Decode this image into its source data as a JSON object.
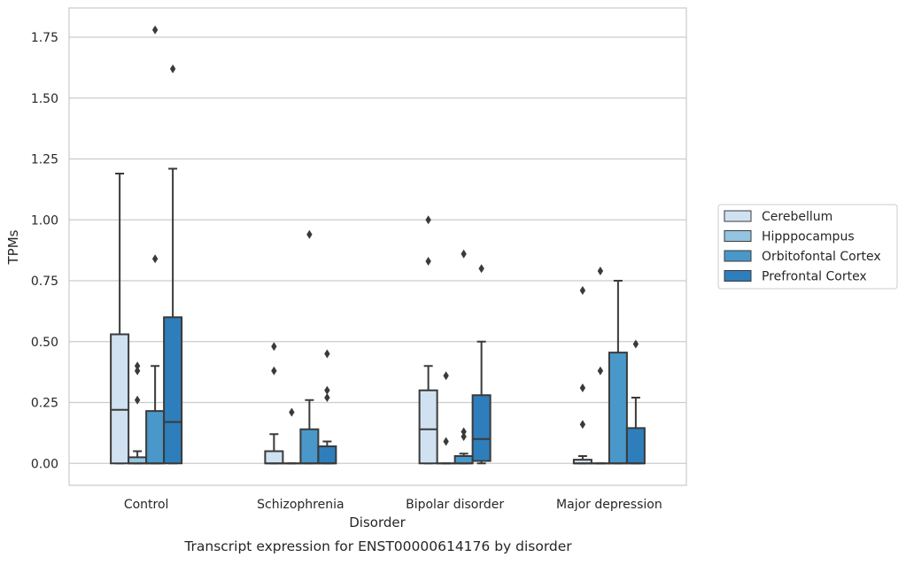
{
  "chart_data": {
    "type": "box",
    "title": "",
    "caption": "Transcript expression for ENST00000614176 by disorder",
    "xlabel": "Disorder",
    "ylabel": "TPMs",
    "ylim": [
      -0.09,
      1.87
    ],
    "yticks": [
      "0.00",
      "0.25",
      "0.50",
      "0.75",
      "1.00",
      "1.25",
      "1.50",
      "1.75"
    ],
    "ytick_values": [
      0,
      0.25,
      0.5,
      0.75,
      1.0,
      1.25,
      1.5,
      1.75
    ],
    "grid": true,
    "legend_position": "right",
    "categories": [
      "Control",
      "Schizophrenia",
      "Bipolar disorder",
      "Major depression"
    ],
    "series": [
      {
        "name": "Cerebellum",
        "color": "#d0e1f2",
        "boxes": [
          {
            "whisker_low": 0.0,
            "q1": 0.0,
            "median": 0.22,
            "q3": 0.53,
            "whisker_high": 1.19,
            "outliers": []
          },
          {
            "whisker_low": 0.0,
            "q1": 0.0,
            "median": 0.0,
            "q3": 0.05,
            "whisker_high": 0.12,
            "outliers": [
              0.48,
              0.38
            ]
          },
          {
            "whisker_low": 0.0,
            "q1": 0.0,
            "median": 0.14,
            "q3": 0.3,
            "whisker_high": 0.4,
            "outliers": [
              1.0,
              0.83
            ]
          },
          {
            "whisker_low": 0.0,
            "q1": 0.0,
            "median": 0.0,
            "q3": 0.015,
            "whisker_high": 0.03,
            "outliers": [
              0.71,
              0.31,
              0.16
            ]
          }
        ]
      },
      {
        "name": "Hipppocampus",
        "color": "#94c4df",
        "boxes": [
          {
            "whisker_low": 0.0,
            "q1": 0.0,
            "median": 0.0,
            "q3": 0.025,
            "whisker_high": 0.05,
            "outliers": [
              0.4,
              0.38,
              0.26
            ]
          },
          {
            "whisker_low": 0.0,
            "q1": 0.0,
            "median": 0.0,
            "q3": 0.0,
            "whisker_high": 0.0,
            "outliers": [
              0.21
            ]
          },
          {
            "whisker_low": 0.0,
            "q1": 0.0,
            "median": 0.0,
            "q3": 0.0,
            "whisker_high": 0.0,
            "outliers": [
              0.36,
              0.09
            ]
          },
          {
            "whisker_low": 0.0,
            "q1": 0.0,
            "median": 0.0,
            "q3": 0.0,
            "whisker_high": 0.0,
            "outliers": [
              0.79,
              0.38
            ]
          }
        ]
      },
      {
        "name": "Orbitofontal Cortex",
        "color": "#4a98c9",
        "boxes": [
          {
            "whisker_low": 0.0,
            "q1": 0.0,
            "median": 0.0,
            "q3": 0.215,
            "whisker_high": 0.4,
            "outliers": [
              1.78,
              0.84
            ]
          },
          {
            "whisker_low": 0.0,
            "q1": 0.0,
            "median": 0.0,
            "q3": 0.14,
            "whisker_high": 0.26,
            "outliers": [
              0.94
            ]
          },
          {
            "whisker_low": 0.0,
            "q1": 0.0,
            "median": 0.0,
            "q3": 0.03,
            "whisker_high": 0.04,
            "outliers": [
              0.86,
              0.13,
              0.11
            ]
          },
          {
            "whisker_low": 0.0,
            "q1": 0.0,
            "median": 0.0,
            "q3": 0.455,
            "whisker_high": 0.75,
            "outliers": []
          }
        ]
      },
      {
        "name": "Prefrontal Cortex",
        "color": "#2e7ebc",
        "boxes": [
          {
            "whisker_low": 0.0,
            "q1": 0.0,
            "median": 0.17,
            "q3": 0.6,
            "whisker_high": 1.21,
            "outliers": [
              1.62
            ]
          },
          {
            "whisker_low": 0.0,
            "q1": 0.0,
            "median": 0.0,
            "q3": 0.07,
            "whisker_high": 0.09,
            "outliers": [
              0.45,
              0.3,
              0.27
            ]
          },
          {
            "whisker_low": 0.0,
            "q1": 0.01,
            "median": 0.1,
            "q3": 0.28,
            "whisker_high": 0.5,
            "outliers": [
              0.8
            ]
          },
          {
            "whisker_low": 0.0,
            "q1": 0.0,
            "median": 0.0,
            "q3": 0.145,
            "whisker_high": 0.27,
            "outliers": [
              0.49
            ]
          }
        ]
      }
    ]
  }
}
